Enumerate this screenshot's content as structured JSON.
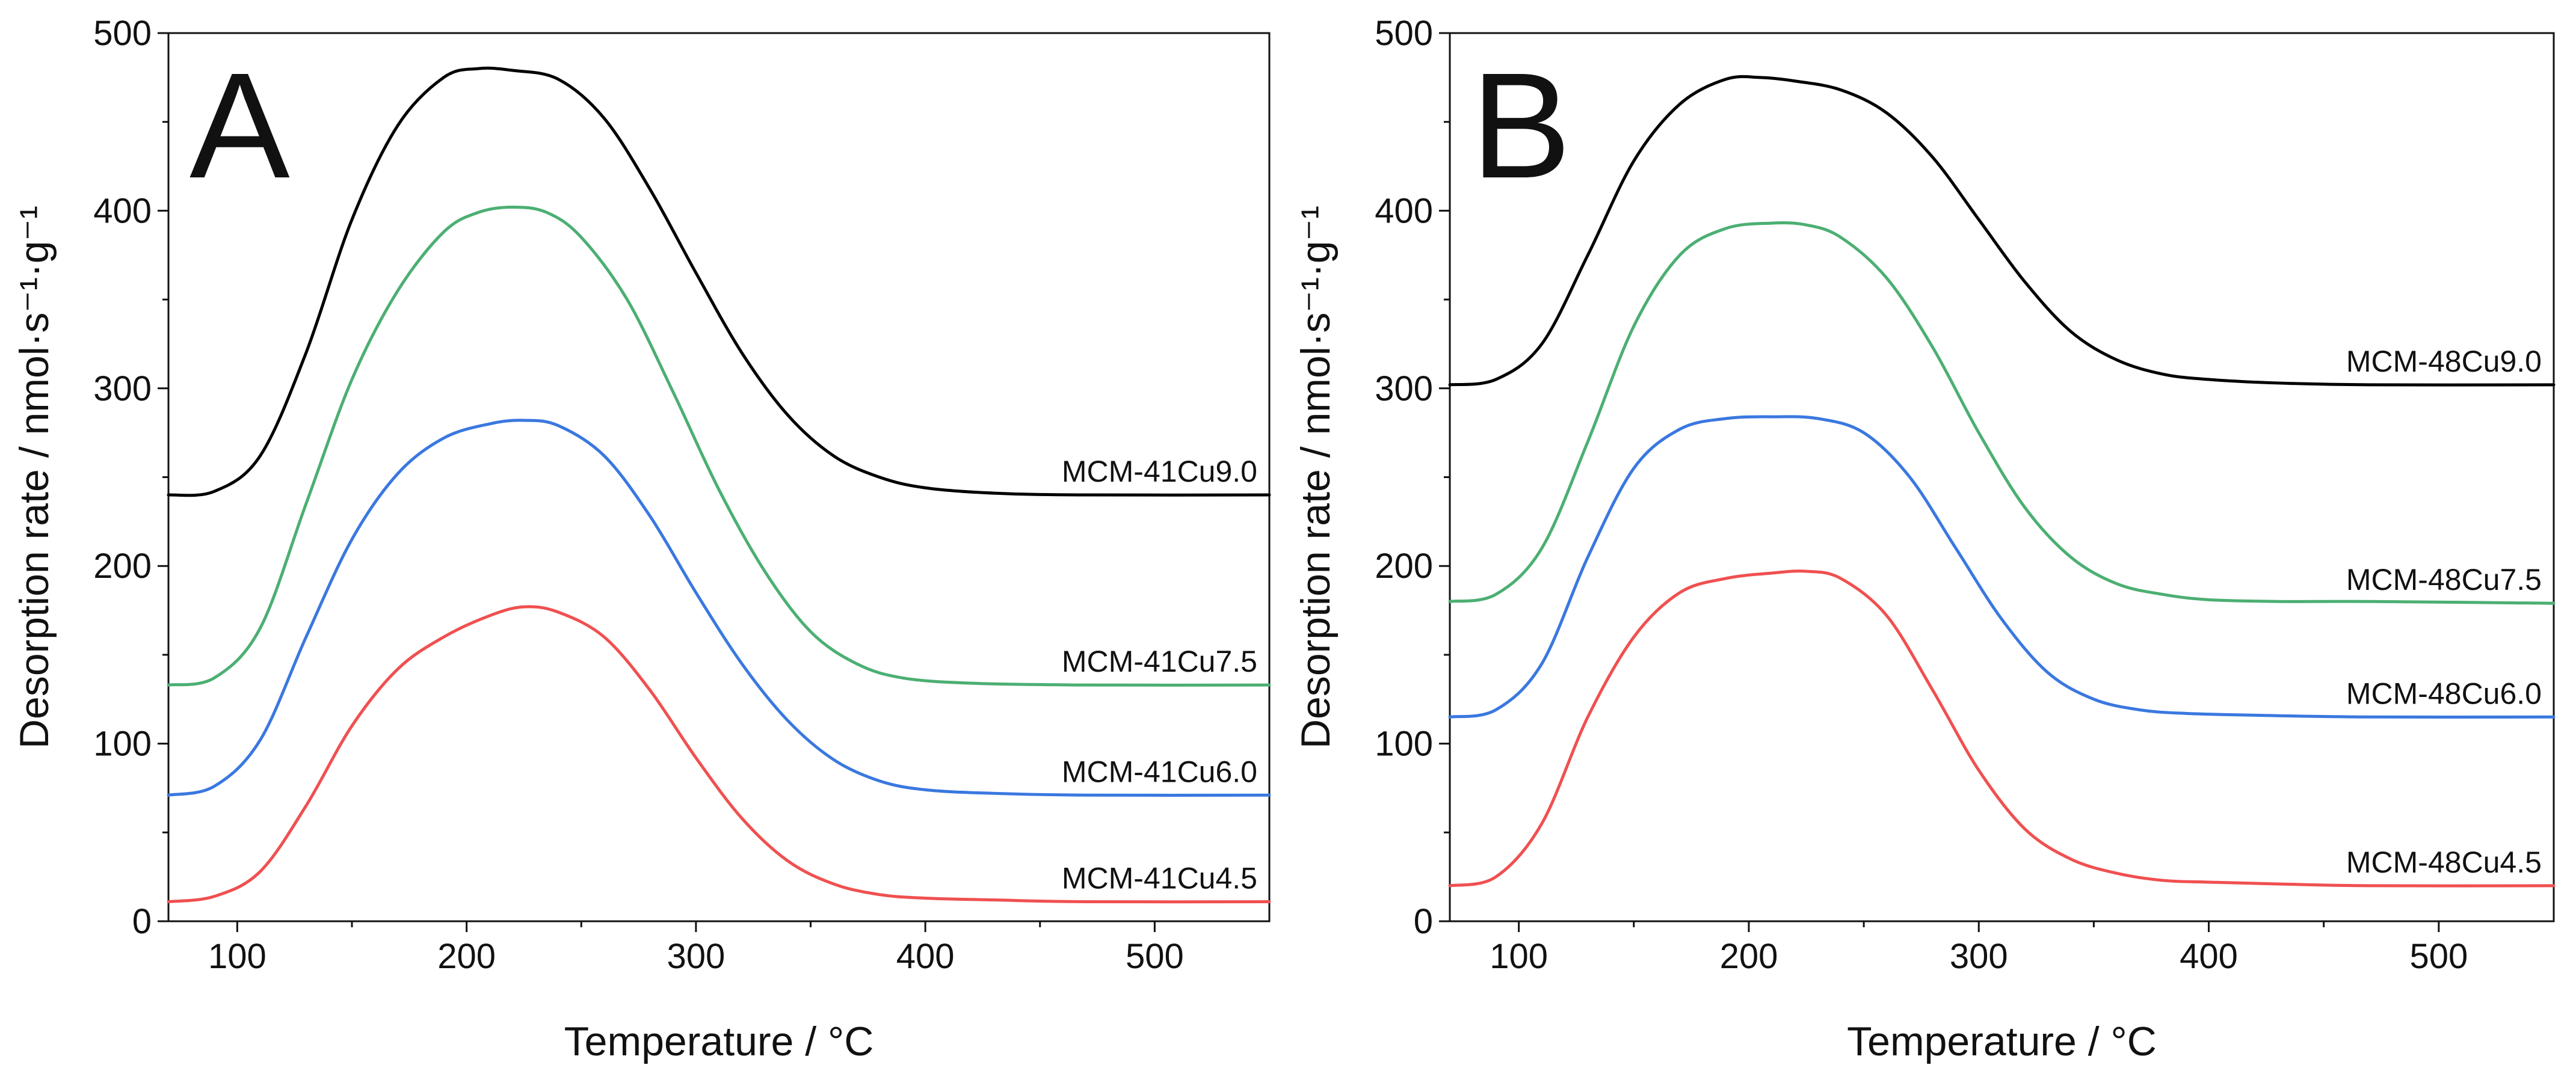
{
  "chart_data": [
    {
      "type": "line",
      "panel_label": "A",
      "xlabel": "Temperature / °C",
      "ylabel": "Desorption rate / nmol·s⁻¹·g⁻¹",
      "xlim": [
        70,
        550
      ],
      "ylim": [
        0,
        500
      ],
      "xticks": [
        100,
        200,
        300,
        400,
        500
      ],
      "yticks": [
        0,
        100,
        200,
        300,
        400,
        500
      ],
      "grid": false,
      "legend": "inline labels at right end of each curve",
      "series": [
        {
          "name": "MCM-41Cu9.0",
          "color": "#000000",
          "points": [
            [
              70,
              240
            ],
            [
              90,
              242
            ],
            [
              110,
              262
            ],
            [
              130,
              320
            ],
            [
              150,
              395
            ],
            [
              170,
              448
            ],
            [
              190,
              475
            ],
            [
              205,
              480
            ],
            [
              220,
              479
            ],
            [
              240,
              474
            ],
            [
              260,
              452
            ],
            [
              280,
              412
            ],
            [
              300,
              365
            ],
            [
              320,
              320
            ],
            [
              340,
              285
            ],
            [
              360,
              262
            ],
            [
              380,
              250
            ],
            [
              400,
              244
            ],
            [
              430,
              241
            ],
            [
              470,
              240
            ],
            [
              550,
              240
            ]
          ]
        },
        {
          "name": "MCM-41Cu7.5",
          "color": "#4caf73",
          "points": [
            [
              70,
              133
            ],
            [
              90,
              137
            ],
            [
              110,
              165
            ],
            [
              130,
              235
            ],
            [
              150,
              305
            ],
            [
              170,
              355
            ],
            [
              190,
              388
            ],
            [
              205,
              399
            ],
            [
              220,
              402
            ],
            [
              235,
              399
            ],
            [
              250,
              385
            ],
            [
              270,
              350
            ],
            [
              290,
              298
            ],
            [
              310,
              243
            ],
            [
              330,
              197
            ],
            [
              350,
              163
            ],
            [
              370,
              145
            ],
            [
              390,
              137
            ],
            [
              420,
              134
            ],
            [
              470,
              133
            ],
            [
              550,
              133
            ]
          ]
        },
        {
          "name": "MCM-41Cu6.0",
          "color": "#3a78e0",
          "points": [
            [
              70,
              71
            ],
            [
              90,
              76
            ],
            [
              110,
              102
            ],
            [
              130,
              160
            ],
            [
              150,
              215
            ],
            [
              170,
              252
            ],
            [
              190,
              272
            ],
            [
              210,
              280
            ],
            [
              225,
              282
            ],
            [
              240,
              279
            ],
            [
              260,
              262
            ],
            [
              280,
              228
            ],
            [
              300,
              185
            ],
            [
              320,
              145
            ],
            [
              340,
              113
            ],
            [
              360,
              91
            ],
            [
              380,
              79
            ],
            [
              400,
              74
            ],
            [
              430,
              72
            ],
            [
              470,
              71
            ],
            [
              550,
              71
            ]
          ]
        },
        {
          "name": "MCM-41Cu4.5",
          "color": "#f05050",
          "points": [
            [
              70,
              11
            ],
            [
              90,
              14
            ],
            [
              110,
              28
            ],
            [
              130,
              65
            ],
            [
              150,
              110
            ],
            [
              170,
              142
            ],
            [
              190,
              160
            ],
            [
              210,
              172
            ],
            [
              225,
              177
            ],
            [
              240,
              174
            ],
            [
              260,
              160
            ],
            [
              280,
              130
            ],
            [
              300,
              92
            ],
            [
              320,
              58
            ],
            [
              340,
              34
            ],
            [
              360,
              21
            ],
            [
              380,
              15
            ],
            [
              400,
              13
            ],
            [
              430,
              12
            ],
            [
              470,
              11
            ],
            [
              550,
              11
            ]
          ]
        }
      ]
    },
    {
      "type": "line",
      "panel_label": "B",
      "xlabel": "Temperature / °C",
      "ylabel": "Desorption rate / nmol·s⁻¹·g⁻¹",
      "xlim": [
        70,
        550
      ],
      "ylim": [
        0,
        500
      ],
      "xticks": [
        100,
        200,
        300,
        400,
        500
      ],
      "yticks": [
        0,
        100,
        200,
        300,
        400,
        500
      ],
      "grid": false,
      "legend": "inline labels at right end of each curve",
      "series": [
        {
          "name": "MCM-48Cu9.0",
          "color": "#000000",
          "points": [
            [
              70,
              302
            ],
            [
              90,
              305
            ],
            [
              110,
              325
            ],
            [
              130,
              375
            ],
            [
              150,
              428
            ],
            [
              170,
              460
            ],
            [
              190,
              474
            ],
            [
              205,
              475
            ],
            [
              220,
              473
            ],
            [
              240,
              468
            ],
            [
              260,
              455
            ],
            [
              280,
              430
            ],
            [
              300,
              395
            ],
            [
              320,
              360
            ],
            [
              340,
              332
            ],
            [
              360,
              316
            ],
            [
              380,
              308
            ],
            [
              400,
              305
            ],
            [
              430,
              303
            ],
            [
              470,
              302
            ],
            [
              550,
              302
            ]
          ]
        },
        {
          "name": "MCM-48Cu7.5",
          "color": "#4caf73",
          "points": [
            [
              70,
              180
            ],
            [
              90,
              184
            ],
            [
              110,
              210
            ],
            [
              130,
              270
            ],
            [
              150,
              335
            ],
            [
              170,
              375
            ],
            [
              190,
              390
            ],
            [
              210,
              393
            ],
            [
              225,
              392
            ],
            [
              240,
              385
            ],
            [
              260,
              362
            ],
            [
              280,
              323
            ],
            [
              300,
              275
            ],
            [
              320,
              233
            ],
            [
              340,
              205
            ],
            [
              360,
              190
            ],
            [
              380,
              184
            ],
            [
              400,
              181
            ],
            [
              430,
              180
            ],
            [
              470,
              180
            ],
            [
              550,
              179
            ]
          ]
        },
        {
          "name": "MCM-48Cu6.0",
          "color": "#3a78e0",
          "points": [
            [
              70,
              115
            ],
            [
              90,
              119
            ],
            [
              110,
              145
            ],
            [
              130,
              205
            ],
            [
              150,
              255
            ],
            [
              170,
              277
            ],
            [
              190,
              283
            ],
            [
              210,
              284
            ],
            [
              230,
              283
            ],
            [
              250,
              275
            ],
            [
              270,
              250
            ],
            [
              290,
              210
            ],
            [
              310,
              170
            ],
            [
              330,
              140
            ],
            [
              350,
              125
            ],
            [
              370,
              119
            ],
            [
              390,
              117
            ],
            [
              420,
              116
            ],
            [
              470,
              115
            ],
            [
              550,
              115
            ]
          ]
        },
        {
          "name": "MCM-48Cu4.5",
          "color": "#f05050",
          "points": [
            [
              70,
              20
            ],
            [
              90,
              25
            ],
            [
              110,
              55
            ],
            [
              130,
              115
            ],
            [
              150,
              160
            ],
            [
              170,
              185
            ],
            [
              190,
              193
            ],
            [
              210,
              196
            ],
            [
              225,
              197
            ],
            [
              240,
              193
            ],
            [
              260,
              172
            ],
            [
              280,
              130
            ],
            [
              300,
              85
            ],
            [
              320,
              52
            ],
            [
              340,
              35
            ],
            [
              360,
              27
            ],
            [
              380,
              23
            ],
            [
              400,
              22
            ],
            [
              430,
              21
            ],
            [
              470,
              20
            ],
            [
              550,
              20
            ]
          ]
        }
      ]
    }
  ]
}
